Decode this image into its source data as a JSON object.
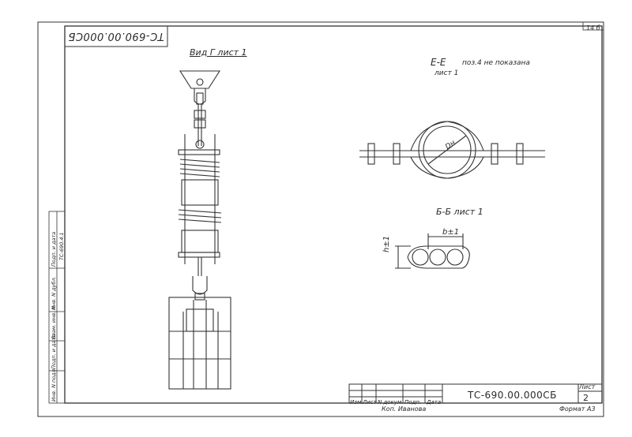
{
  "document": {
    "code_stamp": "ТС-690.00.000СБ",
    "sheet_corner_number": "14 б",
    "view_label": "Вид Г лист 1",
    "section_ee_title": "Е-Е",
    "section_ee_note": "поз.4 не показана",
    "section_ee_sheet": "лист 1",
    "dn_label": "Dн",
    "section_bb_title": "Б-Б лист 1",
    "dim_b": "b±1",
    "dim_h": "h±1"
  },
  "title_block": {
    "code": "ТС-690.00.000СБ",
    "sheet_label": "Лист",
    "sheet_number": "2",
    "headers": [
      "Изм.",
      "Лист",
      "N докум.",
      "Подп.",
      "Дата"
    ],
    "copyist": "Коп. Иванова",
    "format": "Формат А3"
  },
  "side_stamp": {
    "labels": [
      "Инв. N подл.",
      "Подп. и дата",
      "Взам. инв. N",
      "Инв. N дубл.",
      "Подп. и дата"
    ],
    "ref": "ТС-690.4.1"
  }
}
